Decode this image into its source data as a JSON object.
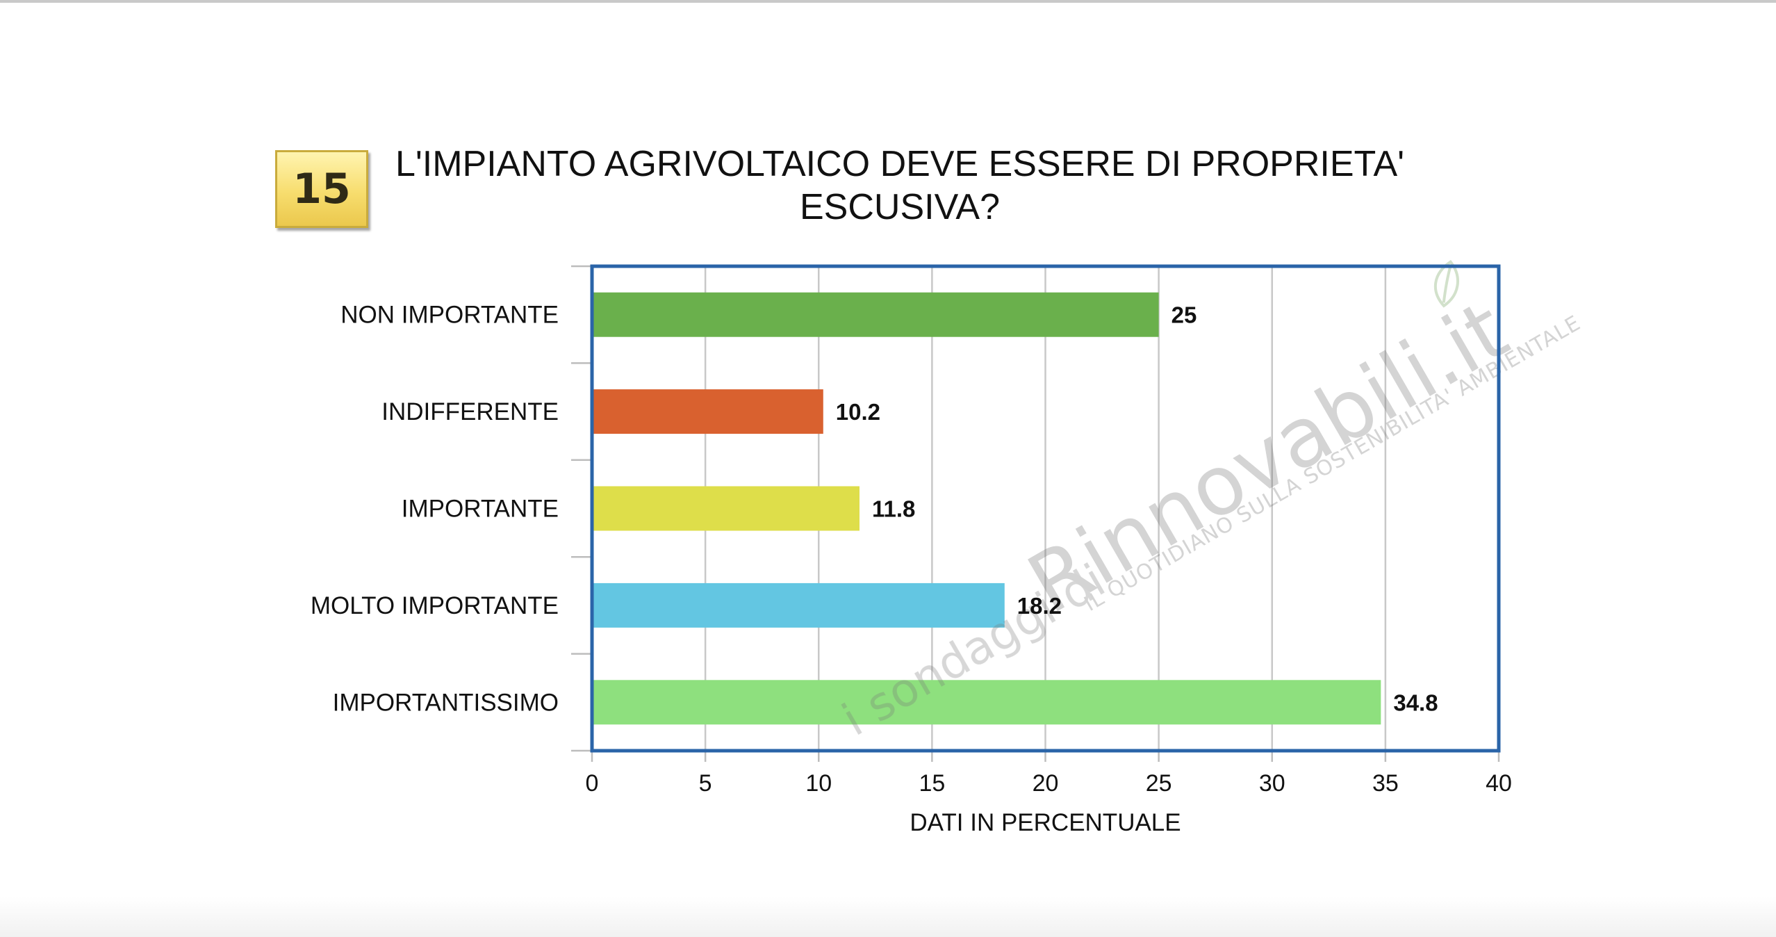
{
  "badge": {
    "number": "15"
  },
  "chart_data": {
    "type": "bar",
    "orientation": "horizontal",
    "title_line1": "L'IMPIANTO AGRIVOLTAICO DEVE ESSERE DI PROPRIETA'",
    "title_line2": "ESCUSIVA?",
    "categories": [
      "NON IMPORTANTE",
      "INDIFFERENTE",
      "IMPORTANTE",
      "MOLTO IMPORTANTE",
      "IMPORTANTISSIMO"
    ],
    "values": [
      25,
      10.2,
      11.8,
      18.2,
      34.8
    ],
    "value_labels": [
      "25",
      "10.2",
      "11.8",
      "18.2",
      "34.8"
    ],
    "colors": [
      "#6ab04c",
      "#d9612f",
      "#dede4a",
      "#63c6e2",
      "#8ee07e"
    ],
    "xlabel": "DATI IN PERCENTUALE",
    "ylabel": "",
    "xlim": [
      0,
      40
    ],
    "xticks": [
      "0",
      "5",
      "10",
      "15",
      "20",
      "25",
      "30",
      "35",
      "40"
    ],
    "grid": true,
    "frame_color": "#2a64a8",
    "grid_color": "#c8c8c8"
  },
  "watermark": {
    "prefix": "i sondaggi di",
    "brand": "Rinnovabili.it",
    "tagline": "IL QUOTIDIANO SULLA SOSTENIBILITA' AMBIENTALE",
    "icon": "leaf-icon"
  }
}
